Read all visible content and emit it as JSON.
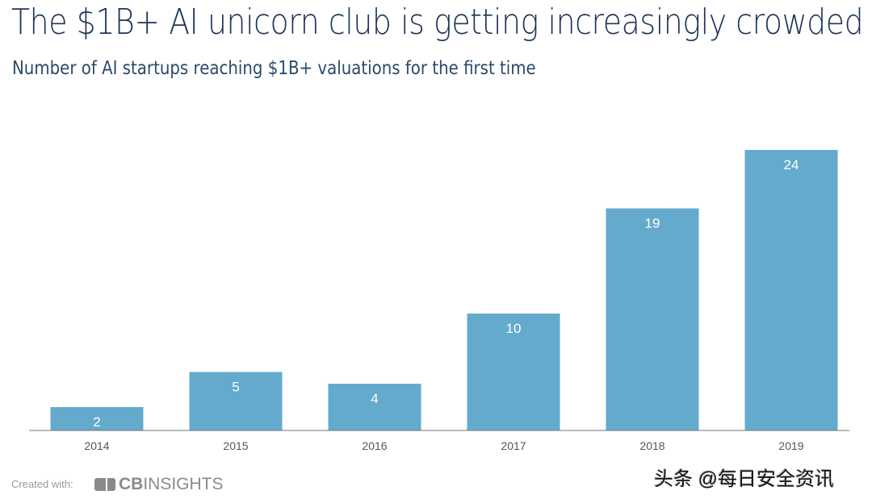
{
  "title": "The $1B+ AI unicorn club is getting increasingly crowded",
  "subtitle": "Number of AI startups reaching $1B+ valuations for the first time",
  "footer": {
    "created_with": "Created with:",
    "logo_bold": "CB",
    "logo_rest": "INSIGHTS"
  },
  "watermark": "头条 @每日安全资讯",
  "colors": {
    "bar": "#64aacd",
    "title": "#1d3557"
  },
  "chart_data": {
    "type": "bar",
    "title": "The $1B+ AI unicorn club is getting increasingly crowded",
    "subtitle": "Number of AI startups reaching $1B+ valuations for the first time",
    "categories": [
      "2014",
      "2015",
      "2016",
      "2017",
      "2018",
      "2019"
    ],
    "values": [
      2,
      5,
      4,
      10,
      19,
      24
    ],
    "xlabel": "",
    "ylabel": "",
    "ylim": [
      0,
      24
    ],
    "grid": false,
    "legend": "none"
  }
}
